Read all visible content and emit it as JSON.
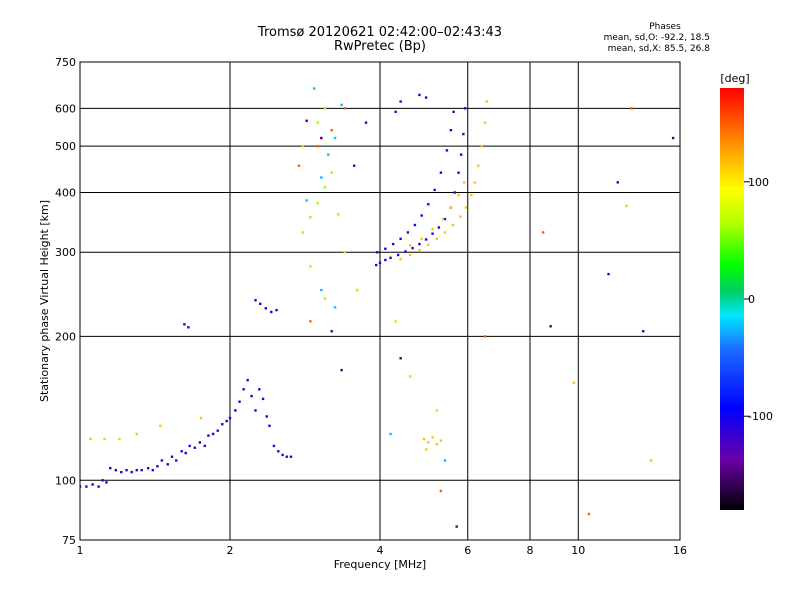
{
  "page": {
    "title_line1": "Tromsø 20120621 02:42:00–02:43:43",
    "title_line2": "RwPretec (Bp)",
    "phases": {
      "title": "Phases",
      "line_o": "mean, sd,O: -92.2, 18.5",
      "line_x": "mean, sd,X: 85.5, 26.8"
    }
  },
  "chart_data": {
    "type": "scatter",
    "title": "Tromsø 20120621 02:42:00–02:43:43",
    "subtitle": "RwPretec (Bp)",
    "xlabel": "Frequency [MHz]",
    "ylabel": "Stationary phase Virtual Height [km]",
    "xscale": "log",
    "yscale": "log",
    "xlim": [
      1,
      16
    ],
    "ylim": [
      75,
      750
    ],
    "x_ticks": [
      1,
      2,
      4,
      6,
      8,
      10,
      16
    ],
    "x_tick_labels": [
      "1",
      "2",
      "4",
      "6",
      "8",
      "10",
      "16"
    ],
    "y_ticks": [
      75,
      100,
      200,
      300,
      400,
      500,
      600,
      750
    ],
    "y_tick_labels": [
      "75",
      "100",
      "200",
      "300",
      "400",
      "500",
      "600",
      "750"
    ],
    "x_grid": [
      1,
      2,
      4,
      6,
      8,
      10,
      16
    ],
    "y_grid": [
      100,
      200,
      300,
      400,
      500,
      600
    ],
    "grid": true,
    "colorbar": {
      "label": "[deg]",
      "range": [
        -180,
        180
      ],
      "ticks": [
        100,
        0,
        -100
      ],
      "tick_labels": [
        "100",
        "0",
        "-100"
      ]
    },
    "series": [
      {
        "color_value": -110,
        "points": [
          [
            1.0,
            97
          ],
          [
            1.03,
            97
          ],
          [
            1.06,
            98
          ],
          [
            1.09,
            97
          ],
          [
            1.11,
            100
          ],
          [
            1.13,
            99
          ],
          [
            1.15,
            106
          ],
          [
            1.18,
            105
          ],
          [
            1.21,
            104
          ],
          [
            1.24,
            105
          ],
          [
            1.27,
            104
          ],
          [
            1.3,
            105
          ],
          [
            1.33,
            105
          ],
          [
            1.37,
            106
          ],
          [
            1.4,
            105
          ],
          [
            1.43,
            107
          ],
          [
            1.46,
            110
          ],
          [
            1.5,
            108
          ],
          [
            1.53,
            112
          ],
          [
            1.56,
            110
          ],
          [
            1.6,
            115
          ],
          [
            1.63,
            114
          ],
          [
            1.66,
            118
          ],
          [
            1.7,
            117
          ],
          [
            1.74,
            120
          ],
          [
            1.78,
            118
          ],
          [
            1.81,
            124
          ],
          [
            1.85,
            125
          ],
          [
            1.89,
            127
          ],
          [
            1.93,
            131
          ],
          [
            1.97,
            133
          ],
          [
            2.0,
            135
          ],
          [
            2.05,
            140
          ],
          [
            2.09,
            146
          ],
          [
            2.13,
            155
          ],
          [
            2.17,
            162
          ],
          [
            2.21,
            150
          ],
          [
            2.25,
            140
          ],
          [
            2.29,
            155
          ],
          [
            2.33,
            148
          ],
          [
            2.37,
            136
          ],
          [
            2.4,
            130
          ],
          [
            2.45,
            118
          ],
          [
            2.5,
            115
          ],
          [
            2.55,
            113
          ],
          [
            2.6,
            112
          ],
          [
            2.65,
            112
          ],
          [
            2.25,
            238
          ],
          [
            2.3,
            234
          ],
          [
            2.36,
            229
          ],
          [
            2.42,
            225
          ],
          [
            2.48,
            227
          ],
          [
            1.62,
            212
          ],
          [
            1.65,
            209
          ],
          [
            3.93,
            282
          ],
          [
            4.0,
            285
          ],
          [
            4.1,
            289
          ],
          [
            4.2,
            292
          ],
          [
            4.35,
            296
          ],
          [
            4.5,
            301
          ],
          [
            4.65,
            306
          ],
          [
            4.8,
            312
          ],
          [
            4.95,
            319
          ],
          [
            5.1,
            328
          ],
          [
            5.25,
            338
          ],
          [
            5.4,
            352
          ],
          [
            5.55,
            372
          ],
          [
            5.65,
            400
          ],
          [
            5.75,
            440
          ],
          [
            5.82,
            480
          ],
          [
            5.88,
            530
          ],
          [
            5.93,
            600
          ],
          [
            3.95,
            300
          ],
          [
            4.1,
            305
          ],
          [
            4.25,
            312
          ],
          [
            4.4,
            320
          ],
          [
            4.55,
            330
          ],
          [
            4.7,
            342
          ],
          [
            4.85,
            358
          ],
          [
            5.0,
            378
          ],
          [
            5.15,
            405
          ],
          [
            5.3,
            440
          ],
          [
            5.45,
            490
          ],
          [
            5.55,
            540
          ],
          [
            5.62,
            590
          ],
          [
            4.3,
            590
          ],
          [
            4.4,
            620
          ],
          [
            4.8,
            640
          ],
          [
            4.95,
            632
          ],
          [
            3.55,
            455
          ],
          [
            3.75,
            560
          ],
          [
            12.0,
            420
          ],
          [
            11.5,
            270
          ]
        ]
      },
      {
        "color_value": 115,
        "points": [
          [
            4.4,
            290
          ],
          [
            4.6,
            296
          ],
          [
            4.8,
            303
          ],
          [
            5.0,
            311
          ],
          [
            5.2,
            320
          ],
          [
            5.4,
            330
          ],
          [
            5.6,
            342
          ],
          [
            5.8,
            356
          ],
          [
            5.95,
            372
          ],
          [
            6.1,
            395
          ],
          [
            6.2,
            420
          ],
          [
            6.3,
            455
          ],
          [
            6.4,
            500
          ],
          [
            6.5,
            560
          ],
          [
            6.55,
            620
          ],
          [
            4.6,
            310
          ],
          [
            4.85,
            320
          ],
          [
            5.1,
            335
          ],
          [
            5.35,
            352
          ],
          [
            5.55,
            372
          ],
          [
            5.75,
            395
          ],
          [
            5.9,
            420
          ],
          [
            4.9,
            122
          ],
          [
            5.0,
            120
          ],
          [
            5.1,
            123
          ],
          [
            5.2,
            119
          ],
          [
            5.3,
            121
          ],
          [
            4.95,
            116
          ],
          [
            1.05,
            122
          ],
          [
            1.12,
            122
          ],
          [
            1.2,
            122
          ],
          [
            1.3,
            125
          ],
          [
            1.45,
            130
          ],
          [
            1.75,
            135
          ],
          [
            9.8,
            160
          ],
          [
            12.5,
            375
          ],
          [
            14.0,
            110
          ]
        ]
      },
      {
        "color_value": 60,
        "points": [
          [
            2.8,
            330
          ],
          [
            2.9,
            355
          ],
          [
            3.0,
            380
          ],
          [
            3.1,
            410
          ],
          [
            3.2,
            440
          ],
          [
            3.3,
            360
          ],
          [
            3.4,
            300
          ],
          [
            3.6,
            250
          ],
          [
            3.1,
            240
          ],
          [
            2.9,
            280
          ],
          [
            2.8,
            500
          ],
          [
            3.0,
            560
          ],
          [
            3.1,
            600
          ],
          [
            4.3,
            215
          ],
          [
            4.6,
            165
          ],
          [
            5.2,
            140
          ]
        ]
      },
      {
        "color_value": -30,
        "points": [
          [
            2.85,
            385
          ],
          [
            3.05,
            430
          ],
          [
            3.15,
            480
          ],
          [
            3.25,
            520
          ],
          [
            3.35,
            610
          ],
          [
            2.95,
            660
          ],
          [
            3.05,
            250
          ],
          [
            3.25,
            230
          ],
          [
            4.2,
            125
          ],
          [
            5.4,
            110
          ]
        ]
      },
      {
        "color_value": 150,
        "points": [
          [
            2.75,
            455
          ],
          [
            3.0,
            500
          ],
          [
            3.2,
            540
          ],
          [
            3.4,
            600
          ],
          [
            2.9,
            215
          ],
          [
            5.3,
            95
          ],
          [
            6.5,
            200
          ],
          [
            8.5,
            330
          ],
          [
            12.8,
            600
          ],
          [
            10.5,
            85
          ]
        ]
      },
      {
        "color_value": -150,
        "points": [
          [
            2.85,
            565
          ],
          [
            3.05,
            520
          ],
          [
            3.2,
            205
          ],
          [
            3.35,
            170
          ],
          [
            4.4,
            180
          ],
          [
            5.7,
            80
          ],
          [
            8.8,
            210
          ],
          [
            13.5,
            205
          ],
          [
            15.5,
            520
          ]
        ]
      }
    ]
  }
}
